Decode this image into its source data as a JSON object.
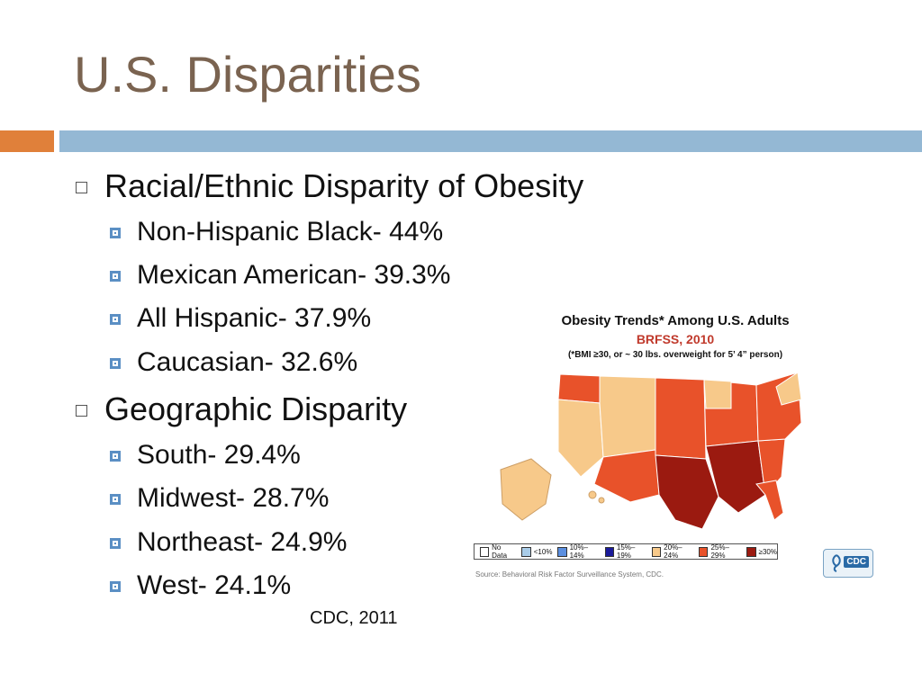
{
  "slide": {
    "title": "U.S. Disparities",
    "citation": "CDC, 2011"
  },
  "bullets": [
    {
      "label": "Racial/Ethnic Disparity of Obesity",
      "sub": [
        "Non-Hispanic Black- 44%",
        "Mexican American- 39.3%",
        "All Hispanic- 37.9%",
        "Caucasian- 32.6%"
      ]
    },
    {
      "label": "Geographic Disparity",
      "sub": [
        "South- 29.4%",
        "Midwest- 28.7%",
        "Northeast- 24.9%",
        "West- 24.1%"
      ]
    }
  ],
  "map": {
    "title": "Obesity Trends* Among U.S. Adults",
    "subtitle": "BRFSS, 2010",
    "note": "(*BMI ≥30, or ~ 30 lbs. overweight for 5’ 4” person)",
    "legend": [
      {
        "label": "No Data",
        "color": "#ffffff"
      },
      {
        "label": "<10%",
        "color": "#a9cce8"
      },
      {
        "label": "10%–14%",
        "color": "#5b8fe0"
      },
      {
        "label": "15%–19%",
        "color": "#1a1a9a"
      },
      {
        "label": "20%–24%",
        "color": "#f7c98a"
      },
      {
        "label": "25%–29%",
        "color": "#e8522a"
      },
      {
        "label": "≥30%",
        "color": "#9b1a10"
      }
    ],
    "source": "Source: Behavioral Risk Factor Surveillance System, CDC.",
    "logo_text": "CDC"
  },
  "colors": {
    "title": "#7a6350",
    "accent_orange": "#e0803a",
    "accent_blue": "#94b8d4"
  }
}
